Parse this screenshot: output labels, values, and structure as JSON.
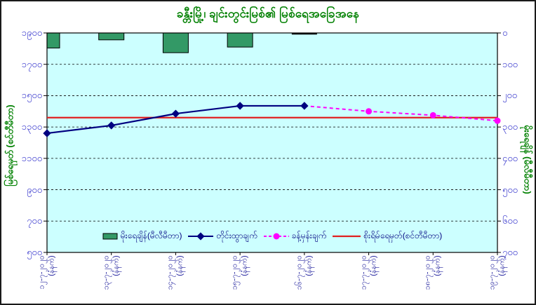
{
  "colors": {
    "title_green": "#008000",
    "plot_bg": "#CCFFFF",
    "bar_green": "#339966",
    "measured_navy": "#000080",
    "forecast_magenta": "#FF00FF",
    "danger_red": "#E02020",
    "tick_text_blue": "#3333CC",
    "xlabel_navy": "#22229E"
  },
  "chart_data": {
    "type": "combo",
    "title": "ခန္တီးမြို့၊ ချင်းတွင်းမြစ်၏ မြစ်ရေအခြေအနေ",
    "grid": "horizontal-dashed",
    "legend_position": "bottom-inside",
    "categories": [
      "၁၂-၇-၂၀၂၀",
      "၁၃-၇-၂၀၂၀",
      "၁၄-၇-၂၀၂၀",
      "၁၅-၇-၂၀၂၀",
      "၁၆-၇-၂၀၂၀",
      "၁၇-၇-၂၀၂၀",
      "၁၈-၇-၂၀၂၀",
      "၁၉-၇-၂၀၂၀"
    ],
    "x_sublabel": "(နံနက်)",
    "left_axis": {
      "title": "မြစ်ရေမှတ် (စင်တီမီတာ)",
      "min": 500,
      "max": 1900,
      "step": 200,
      "tick_labels": [
        "၁၉၀၀",
        "၁၇၀၀",
        "၁၅၀၀",
        "၁၃၀၀",
        "၁၁၀၀",
        "၉၀၀",
        "၇၀၀",
        "၅၀၀"
      ]
    },
    "right_axis": {
      "title": "မိုးရေချိန် (မီလီမီတာ)",
      "min": 0,
      "max": 700,
      "step": 100,
      "direction": "down",
      "tick_labels": [
        "၀",
        "၁၀၀",
        "၂၀၀",
        "၃၀၀",
        "၄၀၀",
        "၅၀၀",
        "၆၀၀",
        "၇၀၀"
      ]
    },
    "series": [
      {
        "name": "မိုးရေချိန်(မီလီမီတာ)",
        "type": "bar",
        "axis": "right",
        "color": "#339966",
        "values": [
          48,
          22,
          63,
          45,
          0,
          null,
          null,
          null
        ]
      },
      {
        "name": "တိုင်းထွာချက်",
        "type": "line",
        "axis": "left",
        "marker": "diamond",
        "color": "#000080",
        "values": [
          1260,
          1310,
          1385,
          1435,
          1435,
          null,
          null,
          null
        ]
      },
      {
        "name": "ခန့်မှန်းချက်",
        "type": "line-dashed",
        "axis": "left",
        "marker": "circle",
        "color": "#FF00FF",
        "values": [
          null,
          null,
          null,
          null,
          1435,
          1400,
          1375,
          1340
        ]
      },
      {
        "name": "စိုးရိမ်ရေမှတ်(စင်တီမီတာ)",
        "type": "hline",
        "axis": "left",
        "color": "#E02020",
        "value": 1360
      }
    ]
  }
}
